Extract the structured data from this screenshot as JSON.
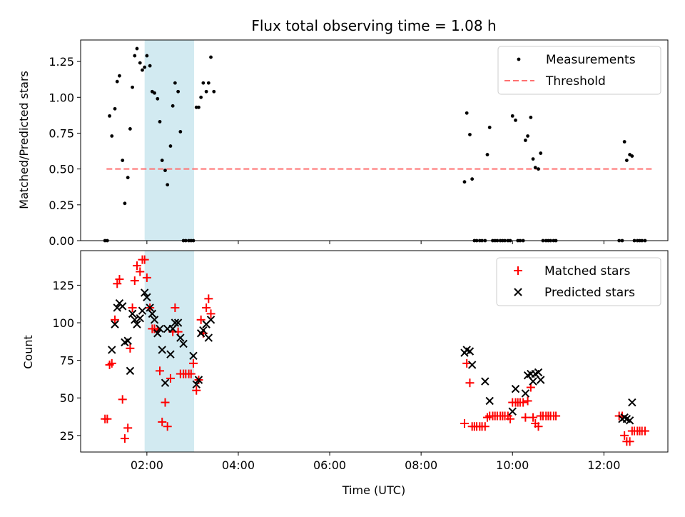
{
  "chart_data": [
    {
      "type": "scatter",
      "title": "Flux total observing time = 1.08 h",
      "xlabel": "",
      "ylabel": "Matched/Predicted stars",
      "xlim": [
        "00:33",
        "13:24"
      ],
      "ylim": [
        0,
        1.4
      ],
      "x_ticks": [
        "02:00",
        "04:00",
        "06:00",
        "08:00",
        "10:00",
        "12:00"
      ],
      "y_ticks": [
        "0.00",
        "0.25",
        "0.50",
        "0.75",
        "1.00",
        "1.25"
      ],
      "x_ticklabels_visible": false,
      "shaded_region": {
        "start": "01:57",
        "end": "03:02",
        "color": "#add8e6"
      },
      "legend": {
        "location": "upper right",
        "entries": [
          "Measurements",
          "Threshold"
        ]
      },
      "threshold": {
        "name": "Threshold",
        "value": 0.5,
        "x_start": "01:07",
        "x_end": "13:03",
        "color": "#ff7070"
      },
      "series": [
        {
          "name": "Measurements",
          "color": "#000000",
          "points": [
            [
              "01:05",
              0
            ],
            [
              "01:08",
              0
            ],
            [
              "01:11",
              0.87
            ],
            [
              "01:14",
              0.73
            ],
            [
              "01:18",
              0.92
            ],
            [
              "01:21",
              1.11
            ],
            [
              "01:24",
              1.15
            ],
            [
              "01:28",
              0.56
            ],
            [
              "01:31",
              0.26
            ],
            [
              "01:35",
              0.44
            ],
            [
              "01:38",
              0.78
            ],
            [
              "01:41",
              1.07
            ],
            [
              "01:44",
              1.29
            ],
            [
              "01:47",
              1.34
            ],
            [
              "01:51",
              1.24
            ],
            [
              "01:54",
              1.19
            ],
            [
              "01:57",
              1.21
            ],
            [
              "02:00",
              1.29
            ],
            [
              "02:04",
              1.22
            ],
            [
              "02:07",
              1.04
            ],
            [
              "02:10",
              1.03
            ],
            [
              "02:14",
              0.99
            ],
            [
              "02:17",
              0.83
            ],
            [
              "02:20",
              0.56
            ],
            [
              "02:24",
              0.49
            ],
            [
              "02:27",
              0.39
            ],
            [
              "02:31",
              0.66
            ],
            [
              "02:34",
              0.94
            ],
            [
              "02:37",
              1.1
            ],
            [
              "02:41",
              1.04
            ],
            [
              "02:44",
              0.76
            ],
            [
              "02:48",
              0
            ],
            [
              "02:51",
              0
            ],
            [
              "02:55",
              0
            ],
            [
              "02:58",
              0
            ],
            [
              "03:01",
              0
            ],
            [
              "03:05",
              0.93
            ],
            [
              "03:08",
              0.93
            ],
            [
              "03:11",
              1.0
            ],
            [
              "03:14",
              1.1
            ],
            [
              "03:18",
              1.04
            ],
            [
              "03:21",
              1.1
            ],
            [
              "03:24",
              1.28
            ],
            [
              "03:28",
              1.04
            ],
            [
              "08:57",
              0.41
            ],
            [
              "09:00",
              0.89
            ],
            [
              "09:04",
              0.74
            ],
            [
              "09:07",
              0.43
            ],
            [
              "09:10",
              0
            ],
            [
              "09:13",
              0
            ],
            [
              "09:17",
              0
            ],
            [
              "09:20",
              0
            ],
            [
              "09:24",
              0
            ],
            [
              "09:27",
              0.6
            ],
            [
              "09:30",
              0.79
            ],
            [
              "09:34",
              0
            ],
            [
              "09:37",
              0
            ],
            [
              "09:40",
              0
            ],
            [
              "09:44",
              0
            ],
            [
              "09:47",
              0
            ],
            [
              "09:50",
              0
            ],
            [
              "09:54",
              0
            ],
            [
              "09:57",
              0
            ],
            [
              "10:00",
              0.87
            ],
            [
              "10:04",
              0.84
            ],
            [
              "10:07",
              0
            ],
            [
              "10:10",
              0
            ],
            [
              "10:14",
              0
            ],
            [
              "10:17",
              0.7
            ],
            [
              "10:20",
              0.73
            ],
            [
              "10:24",
              0.86
            ],
            [
              "10:27",
              0.57
            ],
            [
              "10:30",
              0.51
            ],
            [
              "10:34",
              0.5
            ],
            [
              "10:37",
              0.61
            ],
            [
              "10:40",
              0
            ],
            [
              "10:44",
              0
            ],
            [
              "10:47",
              0
            ],
            [
              "10:50",
              0
            ],
            [
              "10:54",
              0
            ],
            [
              "10:57",
              0
            ],
            [
              "12:20",
              0
            ],
            [
              "12:24",
              0
            ],
            [
              "12:27",
              0.69
            ],
            [
              "12:30",
              0.56
            ],
            [
              "12:34",
              0.6
            ],
            [
              "12:37",
              0.59
            ],
            [
              "12:40",
              0
            ],
            [
              "12:44",
              0
            ],
            [
              "12:47",
              0
            ],
            [
              "12:50",
              0
            ],
            [
              "12:54",
              0
            ]
          ]
        }
      ]
    },
    {
      "type": "scatter",
      "title": "",
      "xlabel": "Time (UTC)",
      "ylabel": "Count",
      "xlim": [
        "00:33",
        "13:24"
      ],
      "ylim": [
        14,
        148
      ],
      "x_ticks": [
        "02:00",
        "04:00",
        "06:00",
        "08:00",
        "10:00",
        "12:00"
      ],
      "y_ticks": [
        "25",
        "50",
        "75",
        "100",
        "125"
      ],
      "shaded_region": {
        "start": "01:57",
        "end": "03:02",
        "color": "#add8e6"
      },
      "legend": {
        "location": "upper right",
        "entries": [
          "Matched stars",
          "Predicted stars"
        ]
      },
      "series": [
        {
          "name": "Matched stars",
          "marker": "plus",
          "color": "#ff0000",
          "points": [
            [
              "01:05",
              36
            ],
            [
              "01:08",
              36
            ],
            [
              "01:11",
              72
            ],
            [
              "01:14",
              73
            ],
            [
              "01:18",
              102
            ],
            [
              "01:21",
              126
            ],
            [
              "01:24",
              129
            ],
            [
              "01:28",
              49
            ],
            [
              "01:31",
              23
            ],
            [
              "01:35",
              30
            ],
            [
              "01:38",
              83
            ],
            [
              "01:41",
              110
            ],
            [
              "01:44",
              128
            ],
            [
              "01:47",
              138
            ],
            [
              "01:51",
              134
            ],
            [
              "01:54",
              142
            ],
            [
              "01:57",
              142
            ],
            [
              "02:00",
              130
            ],
            [
              "02:04",
              110
            ],
            [
              "02:07",
              96
            ],
            [
              "02:10",
              96
            ],
            [
              "02:14",
              95
            ],
            [
              "02:17",
              68
            ],
            [
              "02:20",
              34
            ],
            [
              "02:24",
              47
            ],
            [
              "02:27",
              31
            ],
            [
              "02:31",
              63
            ],
            [
              "02:34",
              94
            ],
            [
              "02:37",
              110
            ],
            [
              "02:41",
              94
            ],
            [
              "02:44",
              66
            ],
            [
              "02:48",
              66
            ],
            [
              "02:51",
              66
            ],
            [
              "02:55",
              66
            ],
            [
              "02:58",
              66
            ],
            [
              "03:01",
              73
            ],
            [
              "03:05",
              55
            ],
            [
              "03:08",
              62
            ],
            [
              "03:11",
              102
            ],
            [
              "03:14",
              93
            ],
            [
              "03:18",
              110
            ],
            [
              "03:21",
              116
            ],
            [
              "03:24",
              106
            ],
            [
              "08:57",
              33
            ],
            [
              "09:00",
              73
            ],
            [
              "09:04",
              60
            ],
            [
              "09:07",
              31
            ],
            [
              "09:10",
              31
            ],
            [
              "09:13",
              31
            ],
            [
              "09:17",
              31
            ],
            [
              "09:20",
              31
            ],
            [
              "09:24",
              31
            ],
            [
              "09:27",
              37
            ],
            [
              "09:30",
              38
            ],
            [
              "09:34",
              38
            ],
            [
              "09:37",
              38
            ],
            [
              "09:40",
              38
            ],
            [
              "09:44",
              38
            ],
            [
              "09:47",
              38
            ],
            [
              "09:50",
              38
            ],
            [
              "09:54",
              38
            ],
            [
              "09:57",
              36
            ],
            [
              "10:00",
              47
            ],
            [
              "10:04",
              47
            ],
            [
              "10:07",
              47
            ],
            [
              "10:10",
              47
            ],
            [
              "10:14",
              47
            ],
            [
              "10:17",
              37
            ],
            [
              "10:20",
              48
            ],
            [
              "10:24",
              57
            ],
            [
              "10:27",
              37
            ],
            [
              "10:30",
              33
            ],
            [
              "10:34",
              31
            ],
            [
              "10:37",
              38
            ],
            [
              "10:40",
              38
            ],
            [
              "10:44",
              38
            ],
            [
              "10:47",
              38
            ],
            [
              "10:50",
              38
            ],
            [
              "10:54",
              38
            ],
            [
              "10:57",
              38
            ],
            [
              "12:20",
              38
            ],
            [
              "12:24",
              38
            ],
            [
              "12:27",
              25
            ],
            [
              "12:30",
              21
            ],
            [
              "12:34",
              21
            ],
            [
              "12:37",
              28
            ],
            [
              "12:40",
              28
            ],
            [
              "12:44",
              28
            ],
            [
              "12:47",
              28
            ],
            [
              "12:50",
              28
            ],
            [
              "12:54",
              28
            ]
          ]
        },
        {
          "name": "Predicted stars",
          "marker": "x",
          "color": "#000000",
          "points": [
            [
              "01:14",
              82
            ],
            [
              "01:18",
              99
            ],
            [
              "01:21",
              110
            ],
            [
              "01:24",
              113
            ],
            [
              "01:28",
              111
            ],
            [
              "01:31",
              87
            ],
            [
              "01:35",
              88
            ],
            [
              "01:38",
              68
            ],
            [
              "01:41",
              106
            ],
            [
              "01:44",
              102
            ],
            [
              "01:47",
              99
            ],
            [
              "01:51",
              103
            ],
            [
              "01:54",
              108
            ],
            [
              "01:57",
              120
            ],
            [
              "02:00",
              117
            ],
            [
              "02:04",
              110
            ],
            [
              "02:07",
              106
            ],
            [
              "02:10",
              102
            ],
            [
              "02:14",
              93
            ],
            [
              "02:17",
              96
            ],
            [
              "02:20",
              82
            ],
            [
              "02:24",
              60
            ],
            [
              "02:27",
              96
            ],
            [
              "02:31",
              79
            ],
            [
              "02:34",
              96
            ],
            [
              "02:37",
              100
            ],
            [
              "02:41",
              100
            ],
            [
              "02:44",
              90
            ],
            [
              "02:48",
              86
            ],
            [
              "03:01",
              78
            ],
            [
              "03:05",
              59
            ],
            [
              "03:08",
              62
            ],
            [
              "03:11",
              93
            ],
            [
              "03:14",
              95
            ],
            [
              "03:18",
              99
            ],
            [
              "03:21",
              90
            ],
            [
              "03:24",
              102
            ],
            [
              "08:57",
              80
            ],
            [
              "09:00",
              82
            ],
            [
              "09:04",
              81
            ],
            [
              "09:07",
              72
            ],
            [
              "09:24",
              61
            ],
            [
              "09:30",
              48
            ],
            [
              "10:00",
              41
            ],
            [
              "10:04",
              56
            ],
            [
              "10:17",
              53
            ],
            [
              "10:20",
              65
            ],
            [
              "10:24",
              66
            ],
            [
              "10:27",
              61
            ],
            [
              "10:30",
              66
            ],
            [
              "10:34",
              67
            ],
            [
              "10:37",
              62
            ],
            [
              "12:24",
              36
            ],
            [
              "12:27",
              37
            ],
            [
              "12:30",
              36
            ],
            [
              "12:34",
              35
            ],
            [
              "12:37",
              47
            ]
          ]
        }
      ]
    }
  ]
}
